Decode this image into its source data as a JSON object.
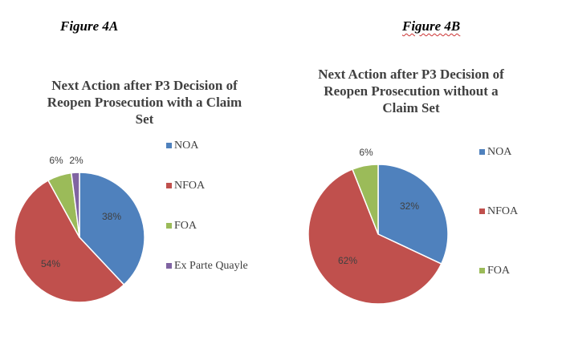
{
  "figure_labels": {
    "a": "Figure 4A",
    "b": "Figure 4B"
  },
  "colors": {
    "NOA": "#4f81bd",
    "NFOA": "#c0504d",
    "FOA": "#9bbb59",
    "Ex Parte Quayle": "#8064a2",
    "title": "#404040"
  },
  "chart_data": [
    {
      "type": "pie",
      "title_lines": [
        "Next Action after P3 Decision of",
        "Reopen Prosecution with a Claim",
        "Set"
      ],
      "slices": [
        {
          "label": "NOA",
          "value": 38,
          "display": "38%"
        },
        {
          "label": "NFOA",
          "value": 54,
          "display": "54%"
        },
        {
          "label": "FOA",
          "value": 6,
          "display": "6%"
        },
        {
          "label": "Ex Parte Quayle",
          "value": 2,
          "display": "2%"
        }
      ],
      "legend": [
        "NOA",
        "NFOA",
        "FOA",
        "Ex Parte Quayle"
      ],
      "legend_position": "right"
    },
    {
      "type": "pie",
      "title_lines": [
        "Next Action after P3 Decision of",
        "Reopen Prosecution without a",
        "Claim Set"
      ],
      "slices": [
        {
          "label": "NOA",
          "value": 32,
          "display": "32%"
        },
        {
          "label": "NFOA",
          "value": 62,
          "display": "62%"
        },
        {
          "label": "FOA",
          "value": 6,
          "display": "6%"
        }
      ],
      "legend": [
        "NOA",
        "NFOA",
        "FOA"
      ],
      "legend_position": "right"
    }
  ]
}
